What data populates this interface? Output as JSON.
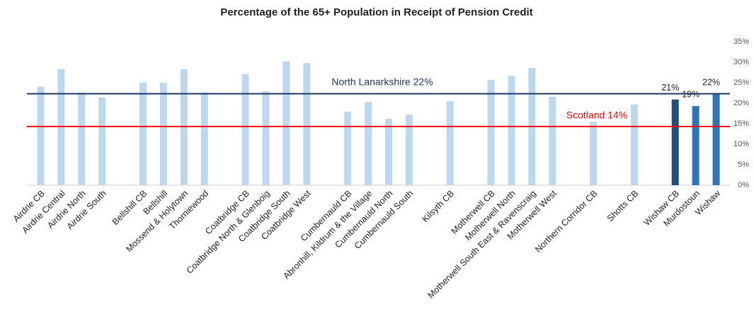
{
  "chart_data": {
    "type": "bar",
    "title": "Percentage of the 65+ Population in Receipt of Pension Credit",
    "categories": [
      "Airdrie CB",
      "Airdrie Central",
      "Airdrie North",
      "Airdrie South",
      null,
      "Bellshill CB",
      "Bellshill",
      "Mossend & Holytown",
      "Thorniewood",
      null,
      "Coatbridge CB",
      "Coatbridge North & Glenboig",
      "Coatbridge South",
      "Coatbridge West",
      null,
      "Cumbernauld CB",
      "Abronhill, Kildrum & the Village",
      "Cumbernauld North",
      "Cumbernauld South",
      null,
      "Kilsyth CB",
      null,
      "Motherwell CB",
      "Motherwell North",
      "Motherwell South East & Ravenscraig",
      "Motherwell West",
      null,
      "Northern Corridor CB",
      null,
      "Shotts CB",
      null,
      "Wishaw CB",
      "Murdostoun",
      "Wishaw"
    ],
    "values": [
      24.0,
      28.3,
      22.6,
      21.4,
      null,
      25.0,
      25.0,
      28.3,
      22.6,
      null,
      27.1,
      22.9,
      30.2,
      29.8,
      null,
      17.9,
      20.3,
      16.2,
      17.2,
      null,
      20.5,
      null,
      25.7,
      26.7,
      28.6,
      21.6,
      null,
      15.5,
      null,
      19.7,
      null,
      20.9,
      19.3,
      22.2
    ],
    "value_labels": [
      null,
      null,
      null,
      null,
      null,
      null,
      null,
      null,
      null,
      null,
      null,
      null,
      null,
      null,
      null,
      null,
      null,
      null,
      null,
      null,
      null,
      null,
      null,
      null,
      null,
      null,
      null,
      null,
      null,
      null,
      null,
      "21%",
      "19%",
      "22%"
    ],
    "color": "#bdd7ee",
    "colors": [
      null,
      null,
      null,
      null,
      null,
      null,
      null,
      null,
      null,
      null,
      null,
      null,
      null,
      null,
      null,
      null,
      null,
      null,
      null,
      null,
      null,
      null,
      null,
      null,
      null,
      null,
      null,
      null,
      null,
      null,
      null,
      "#1f4e79",
      "#2e75b6",
      "#2e75b6"
    ],
    "reference_lines": [
      {
        "label": "North Lanarkshire 22%",
        "value": 22.3,
        "color": "#1f3864"
      },
      {
        "label": "Scotland 14%",
        "value": 14.3,
        "color": "#ff0000"
      }
    ],
    "ylim": [
      0,
      35
    ],
    "yticks": [
      {
        "value": 0,
        "label": "0%"
      },
      {
        "value": 5,
        "label": "5%"
      },
      {
        "value": 10,
        "label": "10%"
      },
      {
        "value": 15,
        "label": "15%"
      },
      {
        "value": 20,
        "label": "20%"
      },
      {
        "value": 25,
        "label": "25%"
      },
      {
        "value": 30,
        "label": "30%"
      },
      {
        "value": 35,
        "label": "35%"
      }
    ],
    "grid": false
  }
}
